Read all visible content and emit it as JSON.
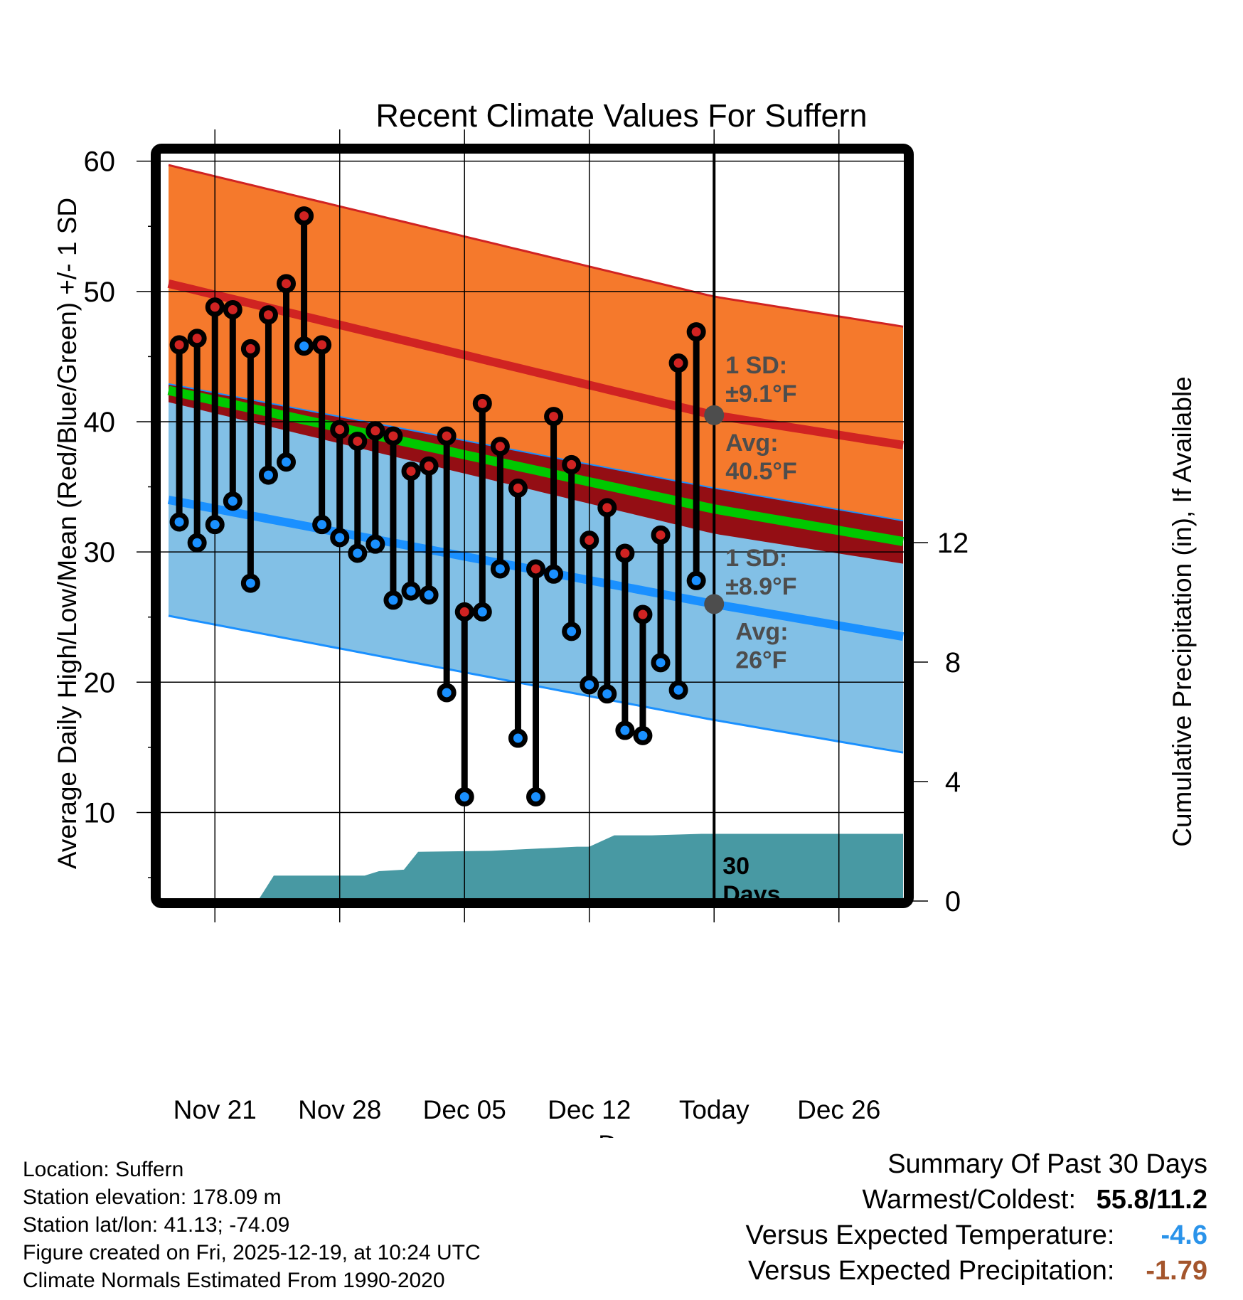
{
  "chart_data": {
    "type": "line",
    "title": "Recent Climate Values For Suffern",
    "xlabel": "Day",
    "ylabel": "Average Daily High/Low/Mean (Red/Blue/Green) +/- 1 SD",
    "y2label": "Cumulative Precipitation (in), If Available",
    "ylim": [
      3.2,
      60.8
    ],
    "y2lim": [
      0,
      16
    ],
    "x_range_days": [
      -1.2,
      40.8
    ],
    "x_origin": "Nov 19",
    "grid": true,
    "yticks": [
      10,
      20,
      30,
      40,
      50,
      60
    ],
    "y2ticks": [
      0,
      4,
      8,
      12
    ],
    "xticks": [
      {
        "day": 2,
        "label": "Nov 21"
      },
      {
        "day": 9,
        "label": "Nov 28"
      },
      {
        "day": 16,
        "label": "Dec 05"
      },
      {
        "day": 23,
        "label": "Dec 12"
      },
      {
        "day": 30,
        "label": "Today"
      },
      {
        "day": 37,
        "label": "Dec 26"
      }
    ],
    "today_day": 30,
    "observed": {
      "days": [
        0,
        1,
        2,
        3,
        4,
        5,
        6,
        7,
        8,
        9,
        10,
        11,
        12,
        13,
        14,
        15,
        16,
        17,
        18,
        19,
        20,
        21,
        22,
        23,
        24,
        25,
        26,
        27,
        28,
        29
      ],
      "high": [
        45.9,
        46.4,
        48.8,
        48.6,
        45.6,
        48.2,
        50.6,
        55.8,
        45.9,
        39.4,
        38.5,
        39.3,
        38.9,
        36.2,
        36.6,
        38.9,
        25.4,
        41.4,
        38.1,
        34.9,
        28.7,
        40.4,
        36.7,
        30.9,
        33.4,
        29.9,
        25.2,
        31.3,
        44.5,
        46.9
      ],
      "low": [
        32.3,
        30.7,
        32.1,
        33.9,
        27.6,
        35.9,
        36.9,
        45.8,
        32.1,
        31.1,
        29.9,
        30.6,
        26.3,
        27.0,
        26.7,
        19.2,
        11.2,
        25.4,
        28.7,
        15.7,
        11.2,
        28.3,
        23.9,
        19.8,
        19.1,
        16.3,
        15.9,
        21.5,
        19.4,
        27.8
      ]
    },
    "normals": {
      "days": [
        -0.6,
        30,
        40.6
      ],
      "high_mean": [
        50.6,
        40.5,
        38.2
      ],
      "high_sd": 9.1,
      "low_mean": [
        34.0,
        26.0,
        23.5
      ],
      "low_sd": 8.9,
      "mean": [
        42.4,
        33.3,
        30.8
      ]
    },
    "precip_cumulative": {
      "days": [
        4.4,
        5.3,
        10.4,
        11.2,
        12.6,
        13.4,
        17.5,
        22.3,
        23.0,
        24.4,
        26.5,
        29.3,
        40.6
      ],
      "values": [
        0,
        0.85,
        0.85,
        1.0,
        1.05,
        1.65,
        1.68,
        1.82,
        1.82,
        2.2,
        2.2,
        2.25,
        2.25
      ]
    },
    "annotations": [
      {
        "line1": "1 SD:",
        "line2": "±9.1°F",
        "anchor": "high-sd"
      },
      {
        "line1": "Avg:",
        "line2": "40.5°F",
        "anchor": "high-avg"
      },
      {
        "line1": "1 SD:",
        "line2": "±8.9°F",
        "anchor": "low-sd"
      },
      {
        "line1": "Avg:",
        "line2": "26°F",
        "anchor": "low-avg"
      },
      {
        "line1": "30",
        "line2": "Days",
        "anchor": "precip"
      }
    ],
    "colors": {
      "high_band": "#f5792c",
      "high_line": "#d02322",
      "low_band": "#82c0e6",
      "low_line": "#1a90ff",
      "mean_line": "#00c800",
      "overlap": "#940e14",
      "precip": "#4899a3",
      "high_dot": "#d02322",
      "low_dot": "#1a90ff",
      "annotation": "#4d4d4d"
    }
  },
  "info": {
    "location": "Location: Suffern",
    "elevation": "Station elevation: 178.09 m",
    "latlon": "Station lat/lon: 41.13; -74.09",
    "created": "Figure created on Fri, 2025-12-19, at 10:24 UTC",
    "normals": "Climate Normals Estimated From 1990-2020"
  },
  "summary": {
    "title": "Summary Of Past 30 Days",
    "warm_cold_label": "Warmest/Coldest:",
    "warm_cold_value": "55.8/11.2",
    "temp_label": "Versus Expected Temperature:",
    "temp_value": "-4.6",
    "temp_color": "#2a93ea",
    "precip_label": "Versus Expected Precipitation:",
    "precip_value": "-1.79",
    "precip_color": "#a4552c"
  }
}
